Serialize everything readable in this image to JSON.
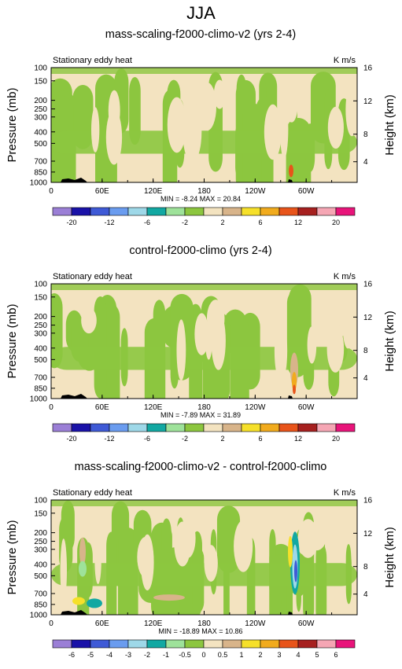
{
  "season_title": "JJA",
  "colors": {
    "levels_main": [
      "#9b7fd6",
      "#1a12a8",
      "#3f5ad6",
      "#6a9cef",
      "#9ed8e8",
      "#12a8a2",
      "#9ee29a",
      "#8cc63f",
      "#f3e3c0",
      "#d8b48a",
      "#f6e02a",
      "#f1ab1d",
      "#e8541a",
      "#a6201f",
      "#f5a6b4",
      "#e8147a"
    ],
    "levels_diff": [
      "#9b7fd6",
      "#1a12a8",
      "#3f5ad6",
      "#6a9cef",
      "#9ed8e8",
      "#12a8a2",
      "#9ee29a",
      "#8cc63f",
      "#f3e3c0",
      "#d8b48a",
      "#f6e02a",
      "#f1ab1d",
      "#e8541a",
      "#a6201f",
      "#f5a6b4",
      "#e8147a"
    ],
    "topography": "#000000"
  },
  "chart_data": [
    {
      "type": "heatmap",
      "title": "mass-scaling-f2000-climo-v2 (yrs 2-4)",
      "subtitle_left": "Stationary eddy heat",
      "units": "K m/s",
      "ylabel": "Pressure (mb)",
      "ylabel_right": "Height (km)",
      "xticks": [
        "0",
        "60E",
        "120E",
        "180",
        "120W",
        "60W"
      ],
      "yticks": [
        "100",
        "150",
        "200",
        "250",
        "300",
        "400",
        "500",
        "700",
        "850",
        "1000"
      ],
      "yticks_right": [
        "16",
        "12",
        "8",
        "4"
      ],
      "minmax_text": "MIN = -8.24   MAX = 20.84",
      "min": -8.24,
      "max": 20.84,
      "colorbar_labels": [
        "-20",
        "-12",
        "-6",
        "-2",
        "2",
        "6",
        "12",
        "20"
      ],
      "colorbar_levels": [
        -20,
        -16,
        -12,
        -8,
        -6,
        -4,
        -2,
        -1,
        1,
        2,
        4,
        6,
        8,
        12,
        16,
        20
      ],
      "fill_levels": "levels_main",
      "dominant_classes": [
        "-2 to -1",
        "-1 to 1",
        "1 to 2"
      ]
    },
    {
      "type": "heatmap",
      "title": "control-f2000-climo (yrs 2-4)",
      "subtitle_left": "Stationary eddy heat",
      "units": "K m/s",
      "ylabel": "Pressure (mb)",
      "ylabel_right": "Height (km)",
      "xticks": [
        "0",
        "60E",
        "120E",
        "180",
        "120W",
        "60W"
      ],
      "yticks": [
        "100",
        "150",
        "200",
        "250",
        "300",
        "400",
        "500",
        "700",
        "850",
        "1000"
      ],
      "yticks_right": [
        "16",
        "12",
        "8",
        "4"
      ],
      "minmax_text": "MIN = -7.89   MAX = 31.89",
      "min": -7.89,
      "max": 31.89,
      "colorbar_labels": [
        "-20",
        "-12",
        "-6",
        "-2",
        "2",
        "6",
        "12",
        "20"
      ],
      "colorbar_levels": [
        -20,
        -16,
        -12,
        -8,
        -6,
        -4,
        -2,
        -1,
        1,
        2,
        4,
        6,
        8,
        12,
        16,
        20
      ],
      "fill_levels": "levels_main",
      "dominant_classes": [
        "-2 to -1",
        "-1 to 1",
        "1 to 2"
      ]
    },
    {
      "type": "heatmap",
      "title": "mass-scaling-f2000-climo-v2 - control-f2000-climo",
      "subtitle_left": "Stationary eddy heat",
      "units": "K m/s",
      "ylabel": "Pressure (mb)",
      "ylabel_right": "Height (km)",
      "xticks": [
        "0",
        "60E",
        "120E",
        "180",
        "120W",
        "60W"
      ],
      "yticks": [
        "100",
        "150",
        "200",
        "250",
        "300",
        "400",
        "500",
        "700",
        "850",
        "1000"
      ],
      "yticks_right": [
        "16",
        "12",
        "8",
        "4"
      ],
      "minmax_text": "MIN = -18.89   MAX = 10.86",
      "min": -18.89,
      "max": 10.86,
      "colorbar_labels": [
        "-6",
        "-5",
        "-4",
        "-3",
        "-2",
        "-1",
        "-0.5",
        "0",
        "0.5",
        "1",
        "2",
        "3",
        "4",
        "5",
        "6"
      ],
      "colorbar_levels": [
        -6,
        -5,
        -4,
        -3,
        -2,
        -1,
        -0.5,
        0,
        0.5,
        1,
        2,
        3,
        4,
        5,
        6
      ],
      "fill_levels": "levels_diff",
      "dominant_classes": [
        "-0.5 to 0",
        "0 to 0.5"
      ]
    }
  ]
}
